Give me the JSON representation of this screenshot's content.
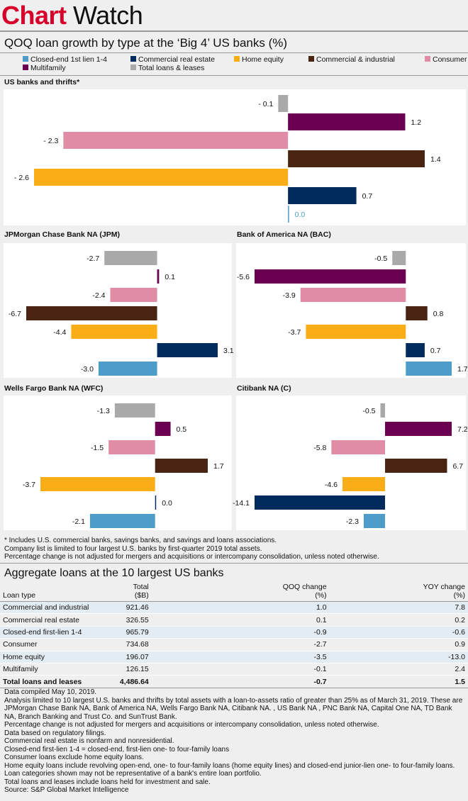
{
  "brand": {
    "word1": "Chart",
    "word2": "Watch"
  },
  "chart_title": "QOQ loan growth by type at the ‘Big 4’ US banks (%)",
  "colors": {
    "closed_end": "#4e9cc9",
    "cre": "#002b5c",
    "home_equity": "#fbad18",
    "ci": "#4a2412",
    "consumer": "#e08ca4",
    "multifamily": "#6b0052",
    "total": "#a9a9a9"
  },
  "legend": [
    {
      "label": "Closed-end 1st lien 1-4",
      "key": "closed_end"
    },
    {
      "label": "Commercial real estate",
      "key": "cre"
    },
    {
      "label": "Home equity",
      "key": "home_equity"
    },
    {
      "label": "Commercial & industrial",
      "key": "ci"
    },
    {
      "label": "Consumer",
      "key": "consumer"
    },
    {
      "label": "Multifamily",
      "key": "multifamily"
    },
    {
      "label": "Total loans & leases",
      "key": "total"
    }
  ],
  "chart_data": [
    {
      "type": "bar",
      "orientation": "horizontal",
      "title": "US banks and thrifts*",
      "categories": [
        "Total loans & leases",
        "Multifamily",
        "Consumer",
        "Commercial & industrial",
        "Home equity",
        "Commercial real estate",
        "Closed-end 1st lien 1-4"
      ],
      "values": [
        -0.1,
        1.2,
        -2.3,
        1.4,
        -2.6,
        0.7,
        0.0
      ]
    },
    {
      "type": "bar",
      "orientation": "horizontal",
      "title": "JPMorgan Chase Bank NA (JPM)",
      "categories": [
        "Total loans & leases",
        "Multifamily",
        "Consumer",
        "Commercial & industrial",
        "Home equity",
        "Commercial real estate",
        "Closed-end 1st lien 1-4"
      ],
      "values": [
        -2.7,
        0.1,
        -2.4,
        -6.7,
        -4.4,
        3.1,
        -3.0
      ]
    },
    {
      "type": "bar",
      "orientation": "horizontal",
      "title": "Bank of America NA (BAC)",
      "categories": [
        "Total loans & leases",
        "Multifamily",
        "Consumer",
        "Commercial & industrial",
        "Home equity",
        "Commercial real estate",
        "Closed-end 1st lien 1-4"
      ],
      "values": [
        -0.5,
        -5.6,
        -3.9,
        0.8,
        -3.7,
        0.7,
        1.7
      ]
    },
    {
      "type": "bar",
      "orientation": "horizontal",
      "title": "Wells Fargo Bank NA (WFC)",
      "categories": [
        "Total loans & leases",
        "Multifamily",
        "Consumer",
        "Commercial & industrial",
        "Home equity",
        "Commercial real estate",
        "Closed-end 1st lien 1-4"
      ],
      "values": [
        -1.3,
        0.5,
        -1.5,
        1.7,
        -3.7,
        0.0,
        -2.1
      ]
    },
    {
      "type": "bar",
      "orientation": "horizontal",
      "title": "Citibank NA (C)",
      "categories": [
        "Total loans & leases",
        "Multifamily",
        "Consumer",
        "Commercial & industrial",
        "Home equity",
        "Commercial real estate",
        "Closed-end 1st lien 1-4"
      ],
      "values": [
        -0.5,
        7.2,
        -5.8,
        6.7,
        -4.6,
        -14.1,
        -2.3
      ]
    }
  ],
  "chart_footnotes": [
    "* Includes U.S. commercial banks, savings banks, and savings and loans associations.",
    "Company list is limited to four largest U.S. banks by first-quarter 2019 total assets.",
    "Percentage change is not adjusted for mergers and acquisitions or intercompany consolidation, unless noted otherwise."
  ],
  "table": {
    "title": "Aggregate loans at the 10 largest US banks",
    "headers": [
      "Loan type",
      "Total\n($B)",
      "QOQ change\n(%)",
      "YOY change\n(%)"
    ],
    "rows": [
      [
        "Commercial and industrial",
        "921.46",
        "1.0",
        "7.8"
      ],
      [
        "Commercial real estate",
        "326.55",
        "0.1",
        "0.2"
      ],
      [
        "Closed-end first-lien 1-4",
        "965.79",
        "-0.9",
        "-0.6"
      ],
      [
        "Consumer",
        "734.68",
        "-2.7",
        "0.9"
      ],
      [
        "Home equity",
        "196.07",
        "-3.5",
        "-13.0"
      ],
      [
        "Multifamily",
        "126.15",
        "-0.1",
        "2.4"
      ]
    ],
    "total": [
      "Total loans and leases",
      "4,486.64",
      "-0.7",
      "1.5"
    ]
  },
  "notes": [
    "Data compiled May 10, 2019.",
    "Analysis limited to 10 largest U.S. banks and thrifts by total assets with a loan-to-assets ratio of greater than 25% as of March 31, 2019. These are JPMorgan Chase Bank NA, Bank of America NA, Wells Fargo Bank NA, Citibank NA. , US Bank NA , PNC Bank NA,  Capital One NA, TD Bank NA, Branch Banking and Trust Co. and SunTrust Bank.",
    "Percentage change is not adjusted for mergers and acquisitions or intercompany consolidation, unless noted otherwise.",
    "Data based on regulatory filings.",
    "Commercial real estate is nonfarm and nonresidential.",
    "Closed-end first-lien 1-4 = closed-end, first-lien one- to four-family loans",
    "Consumer loans exclude home equity loans.",
    "Home equity loans include revolving open-end, one- to four-family loans (home equity lines) and closed-end junior-lien one- to four-family loans.",
    "Loan categories shown may not be representative of a bank's entire loan portfolio.",
    "Total loans and leases include loans held for investment and sale.",
    "Source: S&P Global Market Intelligence"
  ]
}
